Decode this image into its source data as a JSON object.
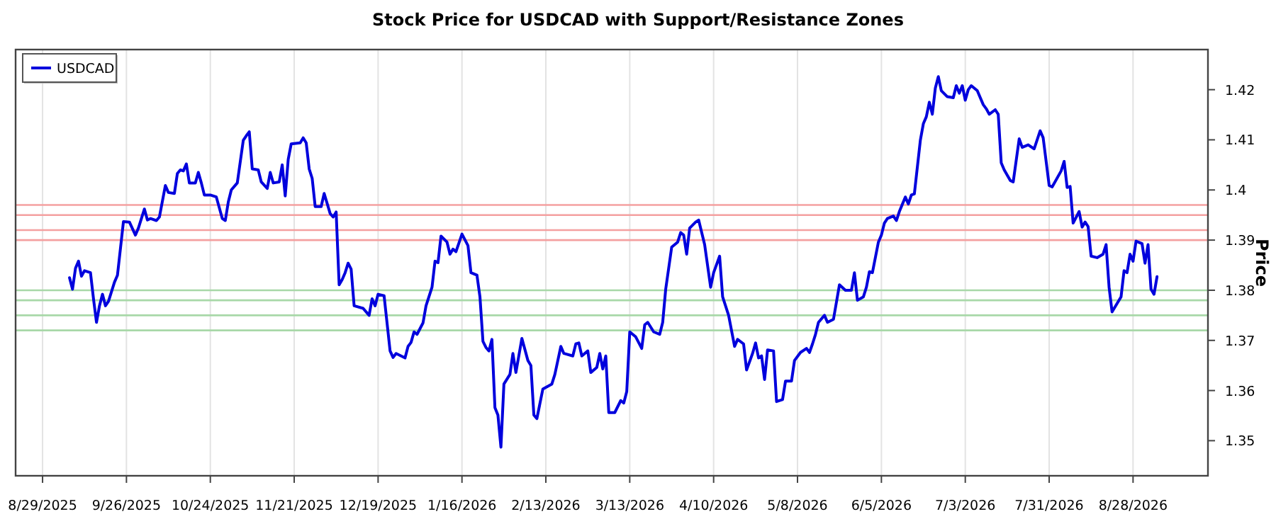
{
  "chart_data": {
    "type": "line",
    "title": "Stock Price for USDCAD with Support/Resistance Zones",
    "ylabel": "Price",
    "xlim": [
      "2025-08-20",
      "2026-09-22"
    ],
    "xticks": [
      {
        "value": "2025-08-29",
        "label": "8/29/2025"
      },
      {
        "value": "2025-09-26",
        "label": "9/26/2025"
      },
      {
        "value": "2025-10-24",
        "label": "10/24/2025"
      },
      {
        "value": "2025-11-21",
        "label": "11/21/2025"
      },
      {
        "value": "2025-12-19",
        "label": "12/19/2025"
      },
      {
        "value": "2026-01-16",
        "label": "1/16/2026"
      },
      {
        "value": "2026-02-13",
        "label": "2/13/2026"
      },
      {
        "value": "2026-03-13",
        "label": "3/13/2026"
      },
      {
        "value": "2026-04-10",
        "label": "4/10/2026"
      },
      {
        "value": "2026-05-08",
        "label": "5/8/2026"
      },
      {
        "value": "2026-06-05",
        "label": "6/5/2026"
      },
      {
        "value": "2026-07-03",
        "label": "7/3/2026"
      },
      {
        "value": "2026-07-31",
        "label": "7/31/2026"
      },
      {
        "value": "2026-08-28",
        "label": "8/28/2026"
      }
    ],
    "ylim": [
      1.343,
      1.428
    ],
    "yticks": [
      1.35,
      1.36,
      1.37,
      1.38,
      1.39,
      1.4,
      1.41,
      1.42
    ],
    "grid": "x",
    "legend": "top left",
    "line_style": "solid",
    "marker": "none",
    "ref_lines": [
      {
        "axis": "y",
        "value": 1.397,
        "color": "#f4a0a0"
      },
      {
        "axis": "y",
        "value": 1.395,
        "color": "#f4a0a0"
      },
      {
        "axis": "y",
        "value": 1.392,
        "color": "#f4a0a0"
      },
      {
        "axis": "y",
        "value": 1.39,
        "color": "#f4a0a0"
      },
      {
        "axis": "y",
        "value": 1.38,
        "color": "#a8d8a8"
      },
      {
        "axis": "y",
        "value": 1.378,
        "color": "#a8d8a8"
      },
      {
        "axis": "y",
        "value": 1.375,
        "color": "#a8d8a8"
      },
      {
        "axis": "y",
        "value": 1.372,
        "color": "#a8d8a8"
      }
    ],
    "series": [
      {
        "name": "USDCAD",
        "color": "#0000dd",
        "x": [
          "2025-09-07",
          "2025-09-08",
          "2025-09-09",
          "2025-09-10",
          "2025-09-11",
          "2025-09-12",
          "2025-09-14",
          "2025-09-15",
          "2025-09-16",
          "2025-09-17",
          "2025-09-18",
          "2025-09-19",
          "2025-09-20",
          "2025-09-22",
          "2025-09-23",
          "2025-09-25",
          "2025-09-27",
          "2025-09-29",
          "2025-09-30",
          "2025-10-02",
          "2025-10-03",
          "2025-10-04",
          "2025-10-06",
          "2025-10-07",
          "2025-10-09",
          "2025-10-10",
          "2025-10-12",
          "2025-10-13",
          "2025-10-14",
          "2025-10-15",
          "2025-10-16",
          "2025-10-17",
          "2025-10-19",
          "2025-10-20",
          "2025-10-21",
          "2025-10-22",
          "2025-10-24",
          "2025-10-26",
          "2025-10-28",
          "2025-10-29",
          "2025-10-30",
          "2025-10-31",
          "2025-11-02",
          "2025-11-04",
          "2025-11-05",
          "2025-11-06",
          "2025-11-07",
          "2025-11-09",
          "2025-11-10",
          "2025-11-12",
          "2025-11-13",
          "2025-11-14",
          "2025-11-16",
          "2025-11-17",
          "2025-11-18",
          "2025-11-19",
          "2025-11-20",
          "2025-11-23",
          "2025-11-24",
          "2025-11-25",
          "2025-11-26",
          "2025-11-27",
          "2025-11-28",
          "2025-11-30",
          "2025-12-01",
          "2025-12-03",
          "2025-12-04",
          "2025-12-05",
          "2025-12-06",
          "2025-12-07",
          "2025-12-08",
          "2025-12-09",
          "2025-12-10",
          "2025-12-11",
          "2025-12-14",
          "2025-12-16",
          "2025-12-17",
          "2025-12-18",
          "2025-12-19",
          "2025-12-21",
          "2025-12-23",
          "2025-12-24",
          "2025-12-25",
          "2025-12-28",
          "2025-12-29",
          "2025-12-30",
          "2025-12-31",
          "2026-01-01",
          "2026-01-03",
          "2026-01-04",
          "2026-01-06",
          "2026-01-07",
          "2026-01-08",
          "2026-01-09",
          "2026-01-11",
          "2026-01-12",
          "2026-01-13",
          "2026-01-14",
          "2026-01-16",
          "2026-01-18",
          "2026-01-19",
          "2026-01-21",
          "2026-01-22",
          "2026-01-23",
          "2026-01-24",
          "2026-01-25",
          "2026-01-26",
          "2026-01-27",
          "2026-01-28",
          "2026-01-29",
          "2026-01-30",
          "2026-02-01",
          "2026-02-02",
          "2026-02-03",
          "2026-02-05",
          "2026-02-07",
          "2026-02-08",
          "2026-02-09",
          "2026-02-10",
          "2026-02-12",
          "2026-02-15",
          "2026-02-16",
          "2026-02-18",
          "2026-02-19",
          "2026-02-22",
          "2026-02-23",
          "2026-02-24",
          "2026-02-25",
          "2026-02-27",
          "2026-02-28",
          "2026-03-02",
          "2026-03-03",
          "2026-03-04",
          "2026-03-05",
          "2026-03-06",
          "2026-03-08",
          "2026-03-10",
          "2026-03-11",
          "2026-03-12",
          "2026-03-13",
          "2026-03-15",
          "2026-03-17",
          "2026-03-18",
          "2026-03-19",
          "2026-03-21",
          "2026-03-23",
          "2026-03-24",
          "2026-03-25",
          "2026-03-27",
          "2026-03-29",
          "2026-03-30",
          "2026-03-31",
          "2026-04-01",
          "2026-04-02",
          "2026-04-04",
          "2026-04-05",
          "2026-04-07",
          "2026-04-09",
          "2026-04-10",
          "2026-04-12",
          "2026-04-13",
          "2026-04-15",
          "2026-04-17",
          "2026-04-18",
          "2026-04-20",
          "2026-04-21",
          "2026-04-23",
          "2026-04-24",
          "2026-04-25",
          "2026-04-26",
          "2026-04-27",
          "2026-04-28",
          "2026-04-30",
          "2026-05-01",
          "2026-05-03",
          "2026-05-04",
          "2026-05-06",
          "2026-05-07",
          "2026-05-09",
          "2026-05-11",
          "2026-05-12",
          "2026-05-13",
          "2026-05-14",
          "2026-05-15",
          "2026-05-17",
          "2026-05-18",
          "2026-05-20",
          "2026-05-22",
          "2026-05-24",
          "2026-05-26",
          "2026-05-27",
          "2026-05-28",
          "2026-05-30",
          "2026-05-31",
          "2026-06-01",
          "2026-06-02",
          "2026-06-04",
          "2026-06-05",
          "2026-06-06",
          "2026-06-07",
          "2026-06-09",
          "2026-06-10",
          "2026-06-11",
          "2026-06-13",
          "2026-06-14",
          "2026-06-15",
          "2026-06-16",
          "2026-06-18",
          "2026-06-19",
          "2026-06-20",
          "2026-06-21",
          "2026-06-22",
          "2026-06-23",
          "2026-06-24",
          "2026-06-25",
          "2026-06-27",
          "2026-06-29",
          "2026-06-30",
          "2026-07-01",
          "2026-07-02",
          "2026-07-03",
          "2026-07-04",
          "2026-07-05",
          "2026-07-07",
          "2026-07-09",
          "2026-07-10",
          "2026-07-11",
          "2026-07-13",
          "2026-07-14",
          "2026-07-15",
          "2026-07-16",
          "2026-07-18",
          "2026-07-19",
          "2026-07-21",
          "2026-07-22",
          "2026-07-24",
          "2026-07-26",
          "2026-07-28",
          "2026-07-29",
          "2026-07-31",
          "2026-08-01",
          "2026-08-04",
          "2026-08-05",
          "2026-08-06",
          "2026-08-07",
          "2026-08-08",
          "2026-08-10",
          "2026-08-11",
          "2026-08-12",
          "2026-08-13",
          "2026-08-14",
          "2026-08-16",
          "2026-08-18",
          "2026-08-19",
          "2026-08-20",
          "2026-08-21",
          "2026-08-24",
          "2026-08-25",
          "2026-08-26",
          "2026-08-27",
          "2026-08-28",
          "2026-08-29",
          "2026-08-31",
          "2026-09-01",
          "2026-09-02",
          "2026-09-03",
          "2026-09-04",
          "2026-09-05"
        ],
        "values": [
          1.3825,
          1.3802,
          1.3844,
          1.3858,
          1.3828,
          1.3839,
          1.3835,
          1.3783,
          1.3736,
          1.3769,
          1.3792,
          1.3769,
          1.3778,
          1.3816,
          1.383,
          1.3937,
          1.3936,
          1.391,
          1.3924,
          1.3962,
          1.394,
          1.3943,
          1.3939,
          1.3946,
          1.4009,
          1.3995,
          1.3993,
          1.4033,
          1.404,
          1.4038,
          1.4052,
          1.4014,
          1.4014,
          1.4035,
          1.4014,
          1.399,
          1.399,
          1.3986,
          1.3943,
          1.3939,
          1.3976,
          1.4,
          1.4014,
          1.4099,
          1.4108,
          1.4116,
          1.4042,
          1.404,
          1.4016,
          1.4003,
          1.4035,
          1.4014,
          1.4016,
          1.405,
          1.3988,
          1.4061,
          1.4092,
          1.4094,
          1.4104,
          1.4094,
          1.4042,
          1.4023,
          1.3967,
          1.3967,
          1.3993,
          1.3953,
          1.3946,
          1.3956,
          1.3811,
          1.3821,
          1.3835,
          1.3854,
          1.3842,
          1.3769,
          1.3764,
          1.375,
          1.3783,
          1.3769,
          1.3792,
          1.3789,
          1.3679,
          1.3666,
          1.3674,
          1.3665,
          1.3688,
          1.3696,
          1.3717,
          1.3712,
          1.3735,
          1.3769,
          1.3806,
          1.3858,
          1.3855,
          1.3908,
          1.3896,
          1.3872,
          1.3882,
          1.3877,
          1.3912,
          1.3889,
          1.3835,
          1.383,
          1.3787,
          1.3698,
          1.3686,
          1.3679,
          1.3702,
          1.3566,
          1.3551,
          1.3487,
          1.3613,
          1.3632,
          1.3674,
          1.3636,
          1.3704,
          1.366,
          1.365,
          1.3551,
          1.3544,
          1.3603,
          1.3613,
          1.3632,
          1.3688,
          1.3674,
          1.3669,
          1.3693,
          1.3695,
          1.3669,
          1.3679,
          1.3636,
          1.3646,
          1.3674,
          1.3643,
          1.3669,
          1.3556,
          1.3556,
          1.358,
          1.3575,
          1.3598,
          1.3717,
          1.3707,
          1.3684,
          1.3731,
          1.3736,
          1.3717,
          1.3712,
          1.3736,
          1.3802,
          1.3886,
          1.3896,
          1.3915,
          1.391,
          1.3872,
          1.3924,
          1.3936,
          1.394,
          1.3891,
          1.3806,
          1.3835,
          1.3868,
          1.3787,
          1.375,
          1.3688,
          1.3702,
          1.3693,
          1.3641,
          1.3674,
          1.3695,
          1.3665,
          1.3669,
          1.3622,
          1.3681,
          1.3679,
          1.3578,
          1.3582,
          1.3619,
          1.3619,
          1.366,
          1.3676,
          1.3684,
          1.3676,
          1.3693,
          1.3712,
          1.3736,
          1.375,
          1.3736,
          1.3742,
          1.3811,
          1.38,
          1.38,
          1.3835,
          1.378,
          1.3787,
          1.3806,
          1.3837,
          1.3835,
          1.3896,
          1.391,
          1.3934,
          1.3943,
          1.3948,
          1.3939,
          1.3957,
          1.3986,
          1.3972,
          1.399,
          1.3992,
          1.4099,
          1.4132,
          1.4146,
          1.4175,
          1.4151,
          1.4203,
          1.4226,
          1.4198,
          1.4186,
          1.4184,
          1.4208,
          1.4193,
          1.4208,
          1.4179,
          1.42,
          1.4208,
          1.4198,
          1.417,
          1.4162,
          1.4151,
          1.416,
          1.4151,
          1.4054,
          1.404,
          1.4019,
          1.4016,
          1.4102,
          1.4085,
          1.409,
          1.4082,
          1.4118,
          1.4104,
          1.4009,
          1.4006,
          1.4038,
          1.4057,
          1.4005,
          1.4007,
          1.3934,
          1.3957,
          1.3926,
          1.3936,
          1.3927,
          1.3868,
          1.3865,
          1.3872,
          1.3891,
          1.3806,
          1.3757,
          1.3787,
          1.3839,
          1.3835,
          1.3872,
          1.3858,
          1.3898,
          1.3893,
          1.3854,
          1.3891,
          1.3802,
          1.3792,
          1.3827
        ]
      }
    ]
  }
}
